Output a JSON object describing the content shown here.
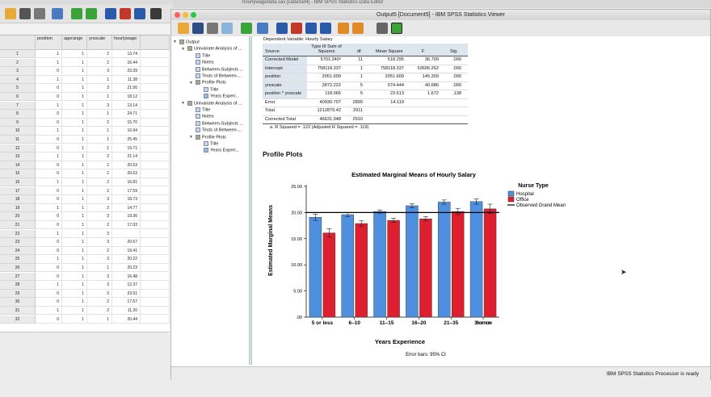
{
  "editor": {
    "title": "hourlywagedata.sav [DataSet4] - IBM SPSS Statistics Data Editor",
    "columns": [
      "position",
      "agerange",
      "yrsscale",
      "hourlywage"
    ],
    "rows": [
      {
        "n": "1",
        "c": [
          "1",
          "1",
          "2",
          "13.74"
        ]
      },
      {
        "n": "2",
        "c": [
          "1",
          "1",
          "2",
          "16.44"
        ]
      },
      {
        "n": "3",
        "c": [
          "0",
          "1",
          "3",
          "23.39"
        ]
      },
      {
        "n": "4",
        "c": [
          "1",
          "1",
          "1",
          "11.38"
        ]
      },
      {
        "n": "5",
        "c": [
          "0",
          "1",
          "3",
          "21.56"
        ]
      },
      {
        "n": "6",
        "c": [
          "0",
          "1",
          "1",
          "18.12"
        ]
      },
      {
        "n": "7",
        "c": [
          "1",
          "1",
          "3",
          "13.14"
        ]
      },
      {
        "n": "8",
        "c": [
          "0",
          "1",
          "1",
          "24.71"
        ]
      },
      {
        "n": "9",
        "c": [
          "0",
          "1",
          "2",
          "15.70"
        ]
      },
      {
        "n": "10",
        "c": [
          "1",
          "1",
          "1",
          "16.94"
        ]
      },
      {
        "n": "11",
        "c": [
          "0",
          "1",
          "1",
          "25.45"
        ]
      },
      {
        "n": "12",
        "c": [
          "0",
          "1",
          "1",
          "19.71"
        ]
      },
      {
        "n": "13",
        "c": [
          "1",
          "1",
          "2",
          "21.14"
        ]
      },
      {
        "n": "14",
        "c": [
          "0",
          "1",
          "2",
          "20.53"
        ]
      },
      {
        "n": "15",
        "c": [
          "0",
          "1",
          "2",
          "20.63"
        ]
      },
      {
        "n": "16",
        "c": [
          "1",
          "1",
          "2",
          "16.81"
        ]
      },
      {
        "n": "17",
        "c": [
          "0",
          "1",
          "2",
          "17.59"
        ]
      },
      {
        "n": "18",
        "c": [
          "0",
          "1",
          "3",
          "18.73"
        ]
      },
      {
        "n": "19",
        "c": [
          "1",
          "1",
          "2",
          "14.77"
        ]
      },
      {
        "n": "20",
        "c": [
          "0",
          "1",
          "3",
          "19.36"
        ]
      },
      {
        "n": "21",
        "c": [
          "0",
          "1",
          "2",
          "17.03"
        ]
      },
      {
        "n": "22",
        "c": [
          "1",
          "1",
          "3",
          ""
        ]
      },
      {
        "n": "23",
        "c": [
          "0",
          "1",
          "3",
          "20.67"
        ]
      },
      {
        "n": "24",
        "c": [
          "0",
          "1",
          "2",
          "19.41"
        ]
      },
      {
        "n": "25",
        "c": [
          "1",
          "1",
          "3",
          "20.22"
        ]
      },
      {
        "n": "26",
        "c": [
          "0",
          "1",
          "1",
          "20.23"
        ]
      },
      {
        "n": "27",
        "c": [
          "0",
          "1",
          "3",
          "16.48"
        ]
      },
      {
        "n": "28",
        "c": [
          "1",
          "1",
          "3",
          "12.37"
        ]
      },
      {
        "n": "29",
        "c": [
          "0",
          "1",
          "3",
          "23.51"
        ]
      },
      {
        "n": "30",
        "c": [
          "0",
          "1",
          "2",
          "17.67"
        ]
      },
      {
        "n": "31",
        "c": [
          "1",
          "1",
          "2",
          "11.20"
        ]
      },
      {
        "n": "32",
        "c": [
          "0",
          "1",
          "1",
          "20.44"
        ]
      }
    ]
  },
  "viewer": {
    "title": "Output5 [Document5] - IBM SPSS Statistics Viewer",
    "status": "IBM SPSS Statistics Processor is ready"
  },
  "outline": [
    {
      "label": "Output",
      "indent": 0,
      "tri": "▼",
      "icon": "book"
    },
    {
      "label": "Univariate Analysis of ...",
      "indent": 1,
      "tri": "▼",
      "icon": "book"
    },
    {
      "label": "Title",
      "indent": 2,
      "tri": "",
      "icon": "page"
    },
    {
      "label": "Notes",
      "indent": 2,
      "tri": "",
      "icon": "page"
    },
    {
      "label": "Between-Subjects ...",
      "indent": 2,
      "tri": "",
      "icon": "table"
    },
    {
      "label": "Tests of Between-...",
      "indent": 2,
      "tri": "",
      "icon": "table"
    },
    {
      "label": "Profile Plots",
      "indent": 2,
      "tri": "▼",
      "icon": "book"
    },
    {
      "label": "Title",
      "indent": 3,
      "tri": "",
      "icon": "page"
    },
    {
      "label": "Years Experi...",
      "indent": 3,
      "tri": "",
      "icon": "chart"
    },
    {
      "label": "Univariate Analysis of ...",
      "indent": 1,
      "tri": "▼",
      "icon": "book"
    },
    {
      "label": "Title",
      "indent": 2,
      "tri": "",
      "icon": "page"
    },
    {
      "label": "Notes",
      "indent": 2,
      "tri": "",
      "icon": "page"
    },
    {
      "label": "Between-Subjects ...",
      "indent": 2,
      "tri": "",
      "icon": "table"
    },
    {
      "label": "Tests of Between-...",
      "indent": 2,
      "tri": "",
      "icon": "table"
    },
    {
      "label": "Profile Plots",
      "indent": 2,
      "tri": "▼",
      "icon": "book"
    },
    {
      "label": "Title",
      "indent": 3,
      "tri": "",
      "icon": "page"
    },
    {
      "label": "Years Experi...",
      "indent": 3,
      "tri": "",
      "icon": "chart"
    }
  ],
  "anova": {
    "dependent": "Dependent Variable:   Hourly Salary",
    "headers": [
      "Source",
      "Type III Sum of Squares",
      "df",
      "Mean Square",
      "F",
      "Sig."
    ],
    "rows": [
      [
        "Corrected Model",
        "5701.240ᵃ",
        "11",
        "518.295",
        "36.709",
        ".000"
      ],
      [
        "Intercept",
        "758118.337",
        "1",
        "758118.337",
        "53695.262",
        ".000"
      ],
      [
        "position",
        "2051.609",
        "1",
        "2051.609",
        "145.309",
        ".000"
      ],
      [
        "yrsscale",
        "2872.222",
        "5",
        "574.444",
        "40.686",
        ".000"
      ],
      [
        "position * yrsscale",
        "118.065",
        "5",
        "23.613",
        "1.672",
        ".138"
      ],
      [
        "Error",
        "40930.707",
        "2899",
        "14.119",
        "",
        ""
      ],
      [
        "Total",
        "1212879.42",
        "2911",
        "",
        "",
        ""
      ],
      [
        "Corrected Total",
        "46631.948",
        "2910",
        "",
        "",
        ""
      ]
    ],
    "footnote": "a. R Squared = .122 (Adjusted R Squared = .119)"
  },
  "profile_heading": "Profile Plots",
  "chart_data": {
    "type": "bar",
    "title": "Estimated Marginal Means of Hourly Salary",
    "xlabel": "Years Experience",
    "ylabel": "Estimated Marginal Means",
    "categories": [
      "5 or less",
      "6–10",
      "11–15",
      "16–20",
      "21–35",
      "36 or more"
    ],
    "ylim": [
      0,
      25
    ],
    "yticks": [
      "25.00",
      "20.00",
      "15.00",
      "10.00",
      "5.00",
      ".00"
    ],
    "legend_title": "Nurse Type",
    "legend_placement": "right",
    "grand_mean_label": "Observed Grand Mean",
    "grand_mean": 20.0,
    "series": [
      {
        "name": "Hospital",
        "color": "#4f8fe0",
        "values": [
          19.1,
          19.6,
          20.2,
          21.3,
          22.0,
          22.1
        ],
        "err": [
          0.6,
          0.4,
          0.3,
          0.4,
          0.4,
          0.5
        ]
      },
      {
        "name": "Office",
        "color": "#dd1f2f",
        "values": [
          16.1,
          17.9,
          18.5,
          18.8,
          20.2,
          20.7
        ],
        "err": [
          0.8,
          0.5,
          0.4,
          0.4,
          0.6,
          0.9
        ]
      }
    ],
    "footnote": "Error bars: 95% CI"
  }
}
